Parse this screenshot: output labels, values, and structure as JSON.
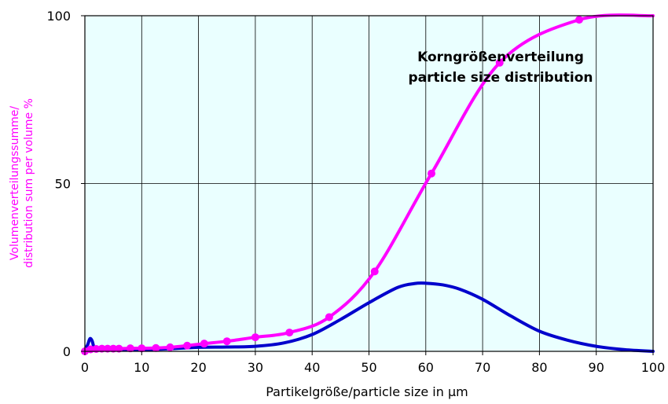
{
  "chart_data": {
    "type": "line",
    "title": [
      "Korngrößenverteilung",
      "particle size distribution"
    ],
    "xlabel": "Partikelgröße/particle size in µm",
    "ylabel": [
      "Volumenverteilungssumme/",
      "distribution sum per volume %"
    ],
    "xlim": [
      0,
      100
    ],
    "ylim": [
      0,
      100
    ],
    "x_ticks": [
      "0",
      "10",
      "20",
      "30",
      "40",
      "50",
      "60",
      "70",
      "80",
      "90",
      "100"
    ],
    "y_ticks": [
      "0",
      "50",
      "100"
    ],
    "grid": true,
    "colors": {
      "plot_background": "#eaffff",
      "cumulative": "#ff00ff",
      "density": "#0000cc",
      "ylabel": "#ff00ff"
    },
    "series": [
      {
        "style": "line-with-markers",
        "color": "#ff00ff",
        "x": [
          0,
          1,
          2,
          3,
          4,
          5,
          6,
          8,
          10,
          12.5,
          15,
          18,
          21,
          25,
          30,
          36,
          43,
          51,
          61,
          73,
          87,
          100
        ],
        "y": [
          0,
          0.6,
          0.7,
          0.8,
          0.8,
          0.8,
          0.8,
          0.9,
          0.9,
          1.0,
          1.2,
          1.7,
          2.3,
          3.0,
          4.2,
          5.6,
          10.2,
          23.8,
          53.0,
          86.0,
          98.8,
          100
        ],
        "markers": [
          0,
          1,
          2,
          3,
          4,
          5,
          6,
          8,
          10,
          12.5,
          15,
          18,
          21,
          25,
          30,
          36,
          43,
          51,
          61,
          73,
          87
        ]
      },
      {
        "style": "line",
        "color": "#0000cc",
        "x": [
          0,
          0.5,
          0.8,
          1.0,
          1.3,
          1.6,
          2,
          5,
          10,
          15,
          20,
          25,
          30,
          35,
          40,
          45,
          50,
          55,
          58,
          60,
          63,
          66,
          70,
          75,
          80,
          85,
          90,
          95,
          100
        ],
        "y": [
          0.5,
          2.0,
          3.5,
          3.8,
          3.0,
          1.2,
          0.5,
          0.5,
          0.5,
          0.8,
          1.2,
          1.3,
          1.5,
          2.5,
          5.0,
          9.5,
          14.5,
          19.0,
          20.2,
          20.3,
          19.8,
          18.5,
          15.5,
          10.5,
          6.0,
          3.3,
          1.5,
          0.5,
          0
        ]
      }
    ]
  }
}
